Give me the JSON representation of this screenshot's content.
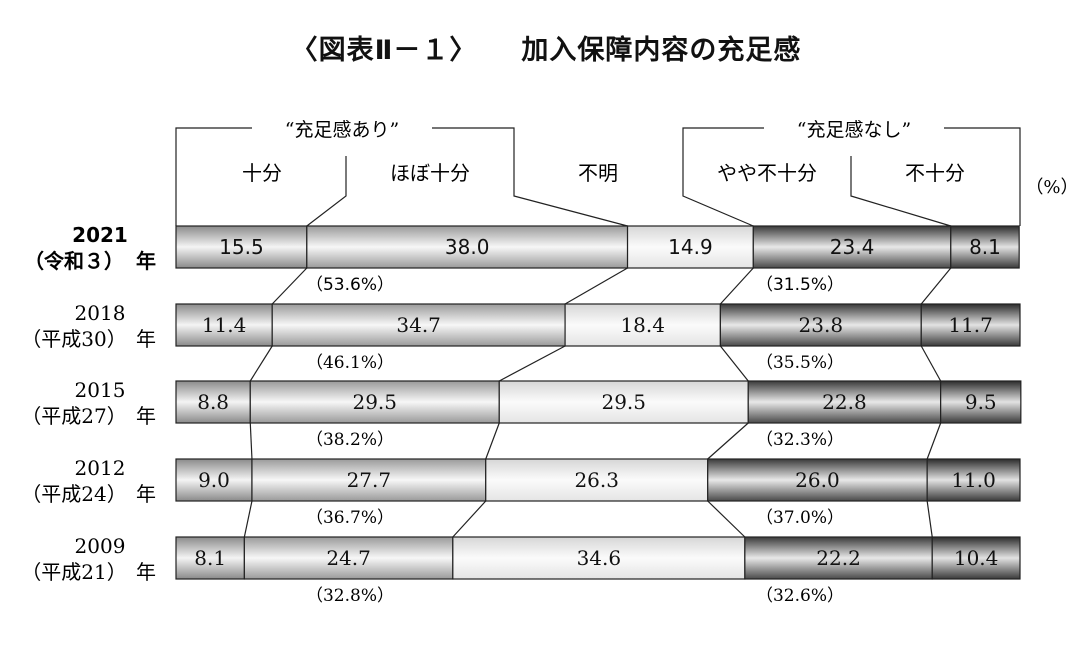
{
  "figure_number": "〈図表Ⅱ－１〉",
  "figure_title": "加入保障内容の充足感",
  "unit": "（%）",
  "chart_data": {
    "type": "bar",
    "stacked": true,
    "orientation": "horizontal",
    "title": "加入保障内容の充足感",
    "group_labels": [
      {
        "name": "“充足感あり”",
        "categories": [
          "十分",
          "ほぼ十分"
        ]
      },
      {
        "name": "“充足感なし”",
        "categories": [
          "やや不十分",
          "不十分"
        ]
      }
    ],
    "categories_order": [
      "十分",
      "ほぼ十分",
      "不明",
      "やや不十分",
      "不十分"
    ],
    "rows": [
      {
        "year": "2021",
        "era": "（令和３）",
        "suffix": "年",
        "values": [
          15.5,
          38.0,
          14.9,
          23.4,
          8.1
        ],
        "labels": [
          "15.5",
          "38.0",
          "14.9",
          "23.4",
          "8.1"
        ],
        "sum_yes": "（53.6%）",
        "sum_no": "（31.5%）"
      },
      {
        "year": "2018",
        "era": "（平成30）",
        "suffix": "年",
        "values": [
          11.4,
          34.7,
          18.4,
          23.8,
          11.7
        ],
        "labels": [
          "11.4",
          "34.7",
          "18.4",
          "23.8",
          "11.7"
        ],
        "sum_yes": "（46.1%）",
        "sum_no": "（35.5%）"
      },
      {
        "year": "2015",
        "era": "（平成27）",
        "suffix": "年",
        "values": [
          8.8,
          29.5,
          29.5,
          22.8,
          9.5
        ],
        "labels": [
          "8.8",
          "29.5",
          "29.5",
          "22.8",
          "9.5"
        ],
        "sum_yes": "（38.2%）",
        "sum_no": "（32.3%）"
      },
      {
        "year": "2012",
        "era": "（平成24）",
        "suffix": "年",
        "values": [
          9.0,
          27.7,
          26.3,
          26.0,
          11.0
        ],
        "labels": [
          "9.0",
          "27.7",
          "26.3",
          "26.0",
          "11.0"
        ],
        "sum_yes": "（36.7%）",
        "sum_no": "（37.0%）"
      },
      {
        "year": "2009",
        "era": "（平成21）",
        "suffix": "年",
        "values": [
          8.1,
          24.7,
          34.6,
          22.2,
          10.4
        ],
        "labels": [
          "8.1",
          "24.7",
          "34.6",
          "22.2",
          "10.4"
        ],
        "sum_yes": "（32.8%）",
        "sum_no": "（32.6%）"
      }
    ],
    "xlim": [
      0,
      100
    ],
    "fill_style": "grey metallic gradient; 不明 light, やや不十分/不十分 darker"
  }
}
